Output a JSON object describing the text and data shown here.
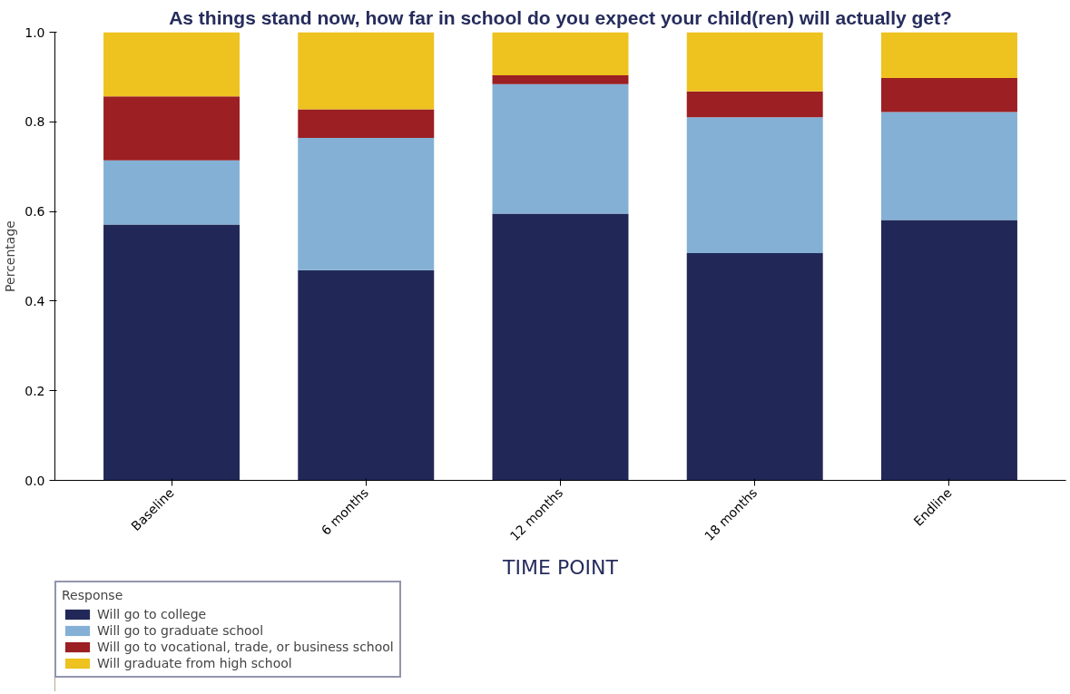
{
  "chart_data": {
    "type": "bar",
    "stacked": true,
    "title": "As things stand now, how far in school do you expect your child(ren) will actually get?",
    "xlabel": "TIME POINT",
    "ylabel": "Percentage",
    "legend_title": "Response",
    "legend": "bottom left",
    "grid": false,
    "categories": [
      "Baseline",
      "6 months",
      "12 months",
      "18 months",
      "Endline"
    ],
    "ylim": [
      0,
      1
    ],
    "yticks": [
      {
        "value": 0,
        "label": "0.0"
      },
      {
        "value": 0.2,
        "label": "0.2"
      },
      {
        "value": 0.4,
        "label": "0.4"
      },
      {
        "value": 0.6,
        "label": "0.6"
      },
      {
        "value": 0.8,
        "label": "0.8"
      },
      {
        "value": 1,
        "label": "1.0"
      }
    ],
    "series": [
      {
        "name": "Will go to college",
        "color": "#212857",
        "values": [
          0.571,
          0.469,
          0.595,
          0.507,
          0.581
        ]
      },
      {
        "name": "Will go to graduate school",
        "color": "#84b0d5",
        "values": [
          0.143,
          0.295,
          0.289,
          0.303,
          0.241
        ]
      },
      {
        "name": "Will go to vocational, trade, or business school",
        "color": "#9b1f23",
        "values": [
          0.143,
          0.064,
          0.02,
          0.058,
          0.076
        ]
      },
      {
        "name": "Will graduate from high school",
        "color": "#eec21f",
        "values": [
          0.143,
          0.172,
          0.096,
          0.132,
          0.102
        ]
      }
    ]
  }
}
